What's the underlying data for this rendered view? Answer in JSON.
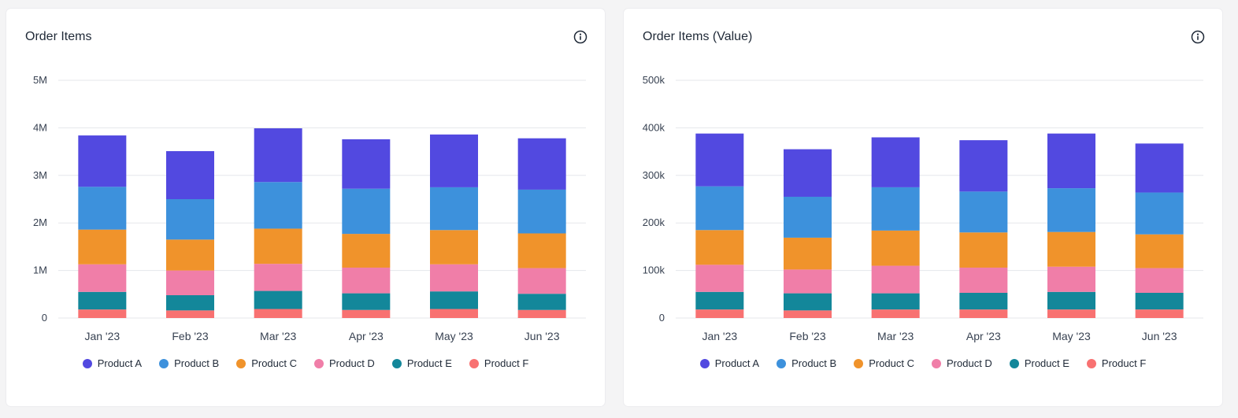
{
  "charts": [
    {
      "title": "Order Items",
      "info_icon": "info-icon"
    },
    {
      "title": "Order Items (Value)",
      "info_icon": "info-icon"
    }
  ],
  "colors": {
    "Product A": "#5249e0",
    "Product B": "#3d91dc",
    "Product C": "#f0932b",
    "Product D": "#f07ea8",
    "Product E": "#13879a",
    "Product F": "#f87171"
  },
  "chart_data": [
    {
      "type": "bar",
      "stacked": true,
      "title": "Order Items",
      "categories": [
        "Jan '23",
        "Feb '23",
        "Mar '23",
        "Apr '23",
        "May '23",
        "Jun '23"
      ],
      "ylim": [
        0,
        5000000
      ],
      "yticks": [
        0,
        1000000,
        2000000,
        3000000,
        4000000,
        5000000
      ],
      "ytick_labels": [
        "0",
        "1M",
        "2M",
        "3M",
        "4M",
        "5M"
      ],
      "grid": true,
      "legend_position": "bottom-center",
      "series": [
        {
          "name": "Product F",
          "values": [
            180000,
            160000,
            190000,
            170000,
            190000,
            170000
          ]
        },
        {
          "name": "Product E",
          "values": [
            370000,
            320000,
            380000,
            350000,
            370000,
            340000
          ]
        },
        {
          "name": "Product D",
          "values": [
            580000,
            520000,
            570000,
            540000,
            570000,
            540000
          ]
        },
        {
          "name": "Product C",
          "values": [
            730000,
            650000,
            740000,
            710000,
            720000,
            730000
          ]
        },
        {
          "name": "Product B",
          "values": [
            900000,
            850000,
            980000,
            950000,
            900000,
            920000
          ]
        },
        {
          "name": "Product A",
          "values": [
            1080000,
            1010000,
            1130000,
            1040000,
            1110000,
            1080000
          ]
        }
      ]
    },
    {
      "type": "bar",
      "stacked": true,
      "title": "Order Items (Value)",
      "categories": [
        "Jan '23",
        "Feb '23",
        "Mar '23",
        "Apr '23",
        "May '23",
        "Jun '23"
      ],
      "ylim": [
        0,
        500000
      ],
      "yticks": [
        0,
        100000,
        200000,
        300000,
        400000,
        500000
      ],
      "ytick_labels": [
        "0",
        "100k",
        "200k",
        "300k",
        "400k",
        "500k"
      ],
      "grid": true,
      "legend_position": "bottom-center",
      "series": [
        {
          "name": "Product F",
          "values": [
            18000,
            16000,
            18000,
            18000,
            18000,
            18000
          ]
        },
        {
          "name": "Product E",
          "values": [
            37000,
            36000,
            34000,
            35000,
            37000,
            35000
          ]
        },
        {
          "name": "Product D",
          "values": [
            57000,
            50000,
            58000,
            53000,
            53000,
            52000
          ]
        },
        {
          "name": "Product C",
          "values": [
            73000,
            67000,
            74000,
            74000,
            73000,
            71000
          ]
        },
        {
          "name": "Product B",
          "values": [
            92000,
            86000,
            91000,
            86000,
            92000,
            88000
          ]
        },
        {
          "name": "Product A",
          "values": [
            111000,
            100000,
            105000,
            108000,
            115000,
            103000
          ]
        }
      ]
    }
  ],
  "legend": [
    "Product A",
    "Product B",
    "Product C",
    "Product D",
    "Product E",
    "Product F"
  ]
}
